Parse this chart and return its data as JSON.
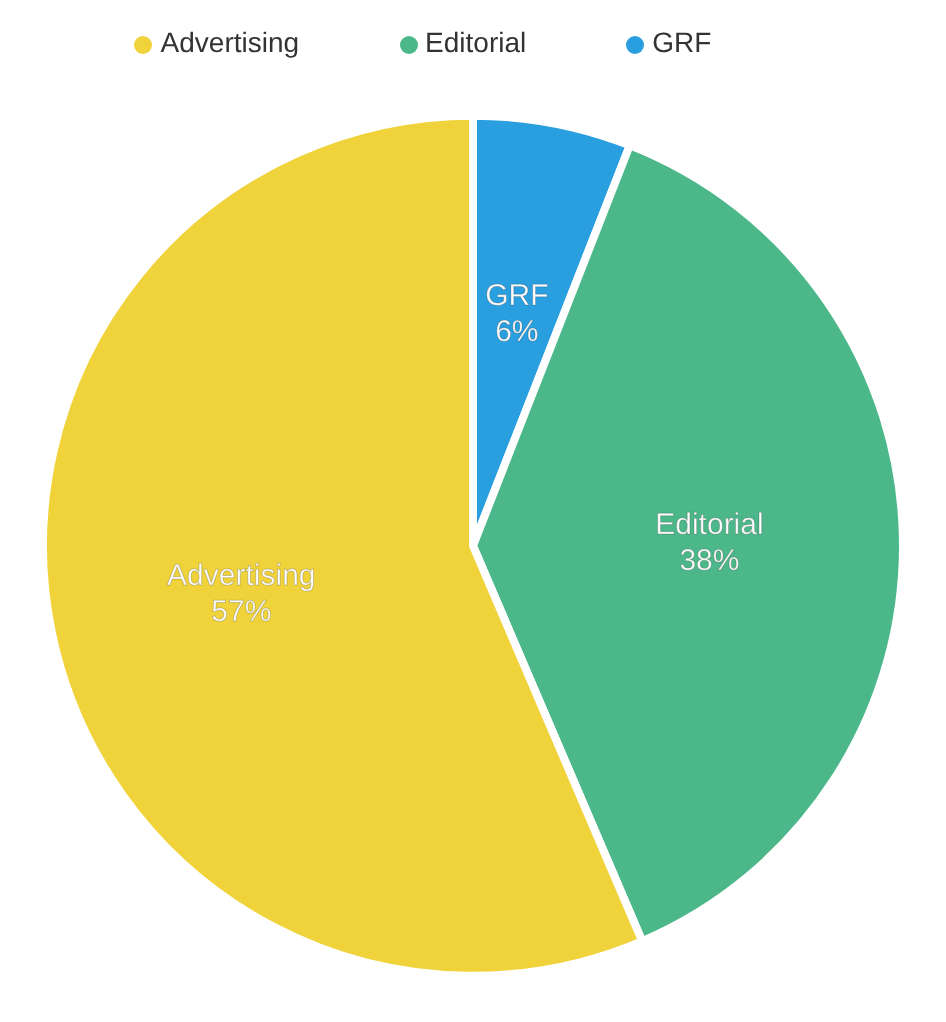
{
  "chart_data": {
    "type": "pie",
    "categories": [
      "GRF",
      "Editorial",
      "Advertising"
    ],
    "values": [
      6,
      38,
      57
    ],
    "colors": [
      "#2a9fe0",
      "#4cb88a",
      "#f0d33a"
    ],
    "value_labels": [
      "6%",
      "38%",
      "57%"
    ],
    "legend": "top"
  }
}
